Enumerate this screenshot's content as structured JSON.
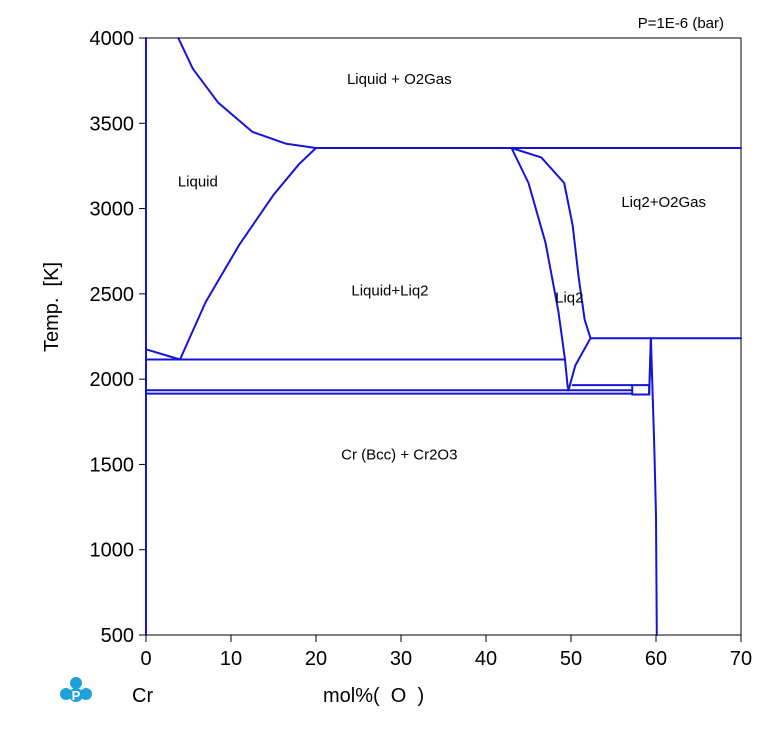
{
  "chart_data": {
    "type": "line",
    "title": "",
    "pressure_label": "P=1E-6  (bar)",
    "xlabel": "mol%(  O  )",
    "ylabel": "Temp.  [K]",
    "element_label": "Cr",
    "xlim": [
      0,
      70
    ],
    "ylim": [
      500,
      4000
    ],
    "x_ticks": [
      0,
      10,
      20,
      30,
      40,
      50,
      60,
      70
    ],
    "y_ticks": [
      500,
      1000,
      1500,
      2000,
      2500,
      3000,
      3500,
      4000
    ],
    "grid": false,
    "line_color": "#1414d8",
    "logo_icon": "pandat-logo-icon",
    "logo_color": "#1ea0d8",
    "regions": [
      {
        "label": "Liquid + O2Gas",
        "x": 29.8,
        "y": 3730
      },
      {
        "label": "Liquid",
        "x": 6.1,
        "y": 3130
      },
      {
        "label": "Liq2+O2Gas",
        "x": 60.9,
        "y": 3010
      },
      {
        "label": "Liq2",
        "x": 49.8,
        "y": 2450
      },
      {
        "label": "Liquid+Liq2",
        "x": 28.7,
        "y": 2490
      },
      {
        "label": "Cr (Bcc) + Cr2O3",
        "x": 29.8,
        "y": 1530
      }
    ],
    "series": [
      {
        "points": [
          [
            3.8,
            4000
          ],
          [
            5.5,
            3820
          ],
          [
            8.5,
            3620
          ],
          [
            12.5,
            3450
          ],
          [
            16.5,
            3380
          ],
          [
            20,
            3355
          ]
        ]
      },
      {
        "points": [
          [
            20,
            3355
          ],
          [
            70,
            3355
          ]
        ]
      },
      {
        "points": [
          [
            4,
            2115
          ],
          [
            7,
            2450
          ],
          [
            11,
            2790
          ],
          [
            15,
            3080
          ],
          [
            18,
            3260
          ],
          [
            20,
            3355
          ]
        ]
      },
      {
        "points": [
          [
            0,
            2175
          ],
          [
            4,
            2115
          ]
        ]
      },
      {
        "points": [
          [
            0,
            2115
          ],
          [
            49.3,
            2115
          ]
        ]
      },
      {
        "points": [
          [
            43,
            3355
          ],
          [
            45,
            3150
          ],
          [
            47,
            2800
          ],
          [
            48.5,
            2400
          ],
          [
            49.3,
            2115
          ],
          [
            49.6,
            1960
          ],
          [
            49.7,
            1935
          ]
        ]
      },
      {
        "points": [
          [
            43,
            3355
          ],
          [
            46.5,
            3300
          ],
          [
            49.2,
            3150
          ],
          [
            50.2,
            2900
          ],
          [
            50.9,
            2600
          ],
          [
            51.6,
            2350
          ],
          [
            52.3,
            2240
          ]
        ]
      },
      {
        "points": [
          [
            52.3,
            2240
          ],
          [
            70,
            2240
          ]
        ]
      },
      {
        "points": [
          [
            52.3,
            2240
          ],
          [
            50.5,
            2080
          ],
          [
            49.7,
            1935
          ]
        ]
      },
      {
        "points": [
          [
            0,
            1935
          ],
          [
            57.2,
            1935
          ]
        ]
      },
      {
        "points": [
          [
            0,
            1915
          ],
          [
            57.2,
            1915
          ]
        ]
      },
      {
        "points": [
          [
            50.2,
            1965
          ],
          [
            59.2,
            1965
          ]
        ]
      },
      {
        "points": [
          [
            57.2,
            1910
          ],
          [
            59.2,
            1910
          ]
        ]
      },
      {
        "points": [
          [
            57.2,
            1915
          ],
          [
            57.2,
            1965
          ]
        ]
      },
      {
        "points": [
          [
            59.2,
            1910
          ],
          [
            59.2,
            1965
          ]
        ]
      },
      {
        "points": [
          [
            59.2,
            1910
          ],
          [
            59.4,
            2240
          ]
        ]
      },
      {
        "points": [
          [
            59.4,
            2240
          ],
          [
            59.6,
            1920
          ],
          [
            59.8,
            1600
          ],
          [
            60.0,
            1200
          ],
          [
            60.1,
            500
          ]
        ]
      },
      {
        "points": [
          [
            59.4,
            2240
          ],
          [
            59.2,
            1920
          ]
        ]
      },
      {
        "points": [
          [
            0,
            500
          ],
          [
            0,
            4000
          ]
        ]
      }
    ]
  }
}
